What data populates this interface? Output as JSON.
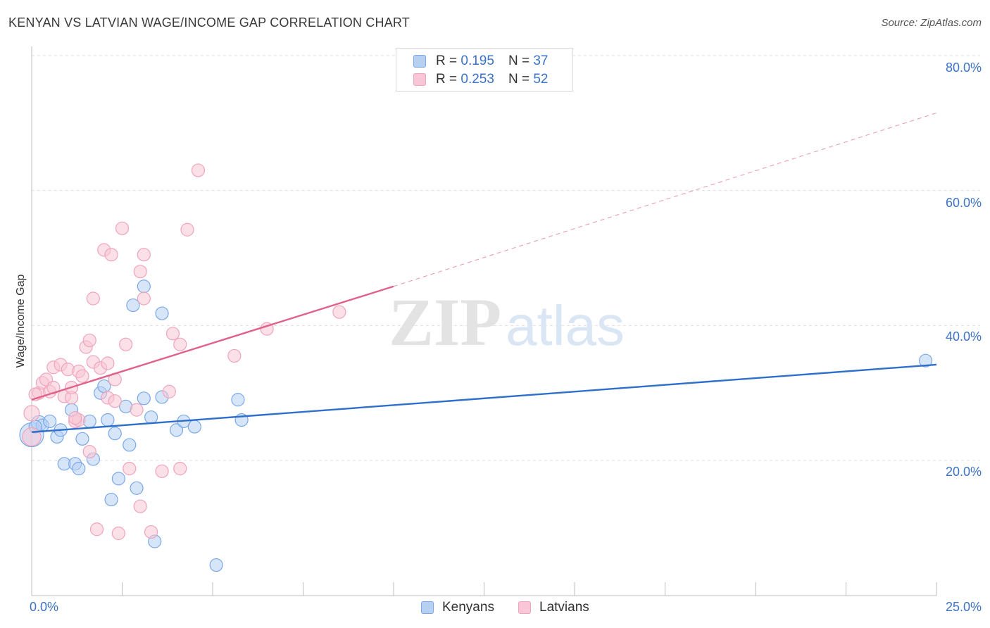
{
  "chart_data": {
    "type": "scatter",
    "title": "KENYAN VS LATVIAN WAGE/INCOME GAP CORRELATION CHART",
    "source": "Source: ZipAtlas.com",
    "xlabel": "",
    "ylabel": "Wage/Income Gap",
    "xlim": [
      0,
      25
    ],
    "ylim": [
      0,
      82
    ],
    "x_tick_labels": [
      "0.0%",
      "25.0%"
    ],
    "y_tick_labels": [
      "20.0%",
      "40.0%",
      "60.0%",
      "80.0%"
    ],
    "y_ticks": [
      20,
      40,
      60,
      80
    ],
    "grid": true,
    "watermark": {
      "zip": "ZIP",
      "atlas": "atlas"
    },
    "legend_position": "top-center",
    "series": [
      {
        "name": "Kenyans",
        "color": "#7aa8e8",
        "fill": "#b7d0f2",
        "line_color": "#2f6fcc",
        "R_label": "R =",
        "R": "0.195",
        "N_label": "N =",
        "N": "37",
        "trend": {
          "x": [
            0,
            25
          ],
          "y": [
            24.2,
            34.2
          ],
          "dashed_from": null
        },
        "points": [
          [
            0.0,
            23.8,
            16
          ],
          [
            0.2,
            25.5,
            10
          ],
          [
            0.3,
            25.2,
            8
          ],
          [
            0.5,
            25.8,
            8
          ],
          [
            0.7,
            23.5,
            8
          ],
          [
            0.8,
            24.5,
            8
          ],
          [
            0.9,
            19.5,
            8
          ],
          [
            1.1,
            27.5,
            8
          ],
          [
            1.2,
            19.5,
            8
          ],
          [
            1.3,
            18.8,
            8
          ],
          [
            1.4,
            23.2,
            8
          ],
          [
            1.6,
            25.8,
            8
          ],
          [
            1.7,
            20.2,
            8
          ],
          [
            1.9,
            30.0,
            8
          ],
          [
            2.0,
            31.0,
            8
          ],
          [
            2.1,
            26.0,
            8
          ],
          [
            2.2,
            14.2,
            8
          ],
          [
            2.3,
            24.0,
            8
          ],
          [
            2.4,
            17.3,
            8
          ],
          [
            2.6,
            28.0,
            8
          ],
          [
            2.7,
            22.3,
            8
          ],
          [
            2.8,
            43.0,
            8
          ],
          [
            2.9,
            15.9,
            8
          ],
          [
            3.1,
            45.8,
            8
          ],
          [
            3.3,
            26.4,
            8
          ],
          [
            3.1,
            29.2,
            8
          ],
          [
            3.4,
            8.0,
            8
          ],
          [
            3.6,
            41.8,
            8
          ],
          [
            3.6,
            29.4,
            8
          ],
          [
            4.0,
            24.5,
            8
          ],
          [
            4.2,
            25.8,
            8
          ],
          [
            4.5,
            25.0,
            8
          ],
          [
            5.1,
            4.5,
            8
          ],
          [
            5.7,
            29.0,
            8
          ],
          [
            5.8,
            26.0,
            8
          ],
          [
            24.7,
            34.8,
            8
          ],
          [
            0.1,
            25.0,
            8
          ]
        ]
      },
      {
        "name": "Latvians",
        "color": "#f0a3bc",
        "fill": "#f8c6d6",
        "line_color": "#e0628a",
        "R_label": "R =",
        "R": "0.253",
        "N_label": "N =",
        "N": "52",
        "trend": {
          "x": [
            0,
            10
          ],
          "y": [
            29.0,
            45.8
          ],
          "dashed_to": [
            25,
            71.5
          ]
        },
        "points": [
          [
            0.0,
            27.0,
            10
          ],
          [
            0.0,
            23.5,
            12
          ],
          [
            0.2,
            30.0,
            8
          ],
          [
            0.3,
            31.5,
            8
          ],
          [
            0.4,
            32.0,
            8
          ],
          [
            0.5,
            30.2,
            8
          ],
          [
            0.6,
            30.8,
            8
          ],
          [
            0.6,
            33.8,
            8
          ],
          [
            0.8,
            34.2,
            8
          ],
          [
            0.9,
            29.5,
            8
          ],
          [
            1.0,
            33.5,
            8
          ],
          [
            1.1,
            29.3,
            8
          ],
          [
            1.1,
            30.8,
            8
          ],
          [
            1.2,
            25.8,
            8
          ],
          [
            1.3,
            33.2,
            8
          ],
          [
            1.3,
            26.0,
            8
          ],
          [
            1.4,
            32.5,
            8
          ],
          [
            1.5,
            36.8,
            8
          ],
          [
            1.6,
            37.8,
            8
          ],
          [
            1.6,
            21.3,
            8
          ],
          [
            1.7,
            34.6,
            8
          ],
          [
            1.7,
            44.0,
            8
          ],
          [
            1.8,
            9.8,
            8
          ],
          [
            1.9,
            33.7,
            8
          ],
          [
            2.0,
            51.2,
            8
          ],
          [
            2.1,
            34.4,
            8
          ],
          [
            2.1,
            29.3,
            8
          ],
          [
            2.2,
            50.5,
            8
          ],
          [
            2.3,
            28.8,
            8
          ],
          [
            2.3,
            32.0,
            8
          ],
          [
            2.4,
            9.2,
            8
          ],
          [
            2.5,
            54.4,
            8
          ],
          [
            2.6,
            37.2,
            8
          ],
          [
            2.7,
            18.8,
            8
          ],
          [
            2.9,
            27.5,
            8
          ],
          [
            3.0,
            13.2,
            8
          ],
          [
            3.0,
            48.0,
            8
          ],
          [
            3.1,
            44.0,
            8
          ],
          [
            3.1,
            50.5,
            8
          ],
          [
            3.3,
            9.4,
            8
          ],
          [
            3.6,
            18.4,
            8
          ],
          [
            3.8,
            30.2,
            8
          ],
          [
            3.9,
            38.8,
            8
          ],
          [
            4.1,
            18.8,
            8
          ],
          [
            4.1,
            37.2,
            8
          ],
          [
            4.3,
            54.2,
            8
          ],
          [
            4.6,
            63.0,
            8
          ],
          [
            5.6,
            35.5,
            8
          ],
          [
            6.5,
            39.5,
            8
          ],
          [
            8.5,
            42.0,
            8
          ],
          [
            0.1,
            29.8,
            8
          ],
          [
            1.2,
            26.3,
            8
          ]
        ]
      }
    ]
  }
}
